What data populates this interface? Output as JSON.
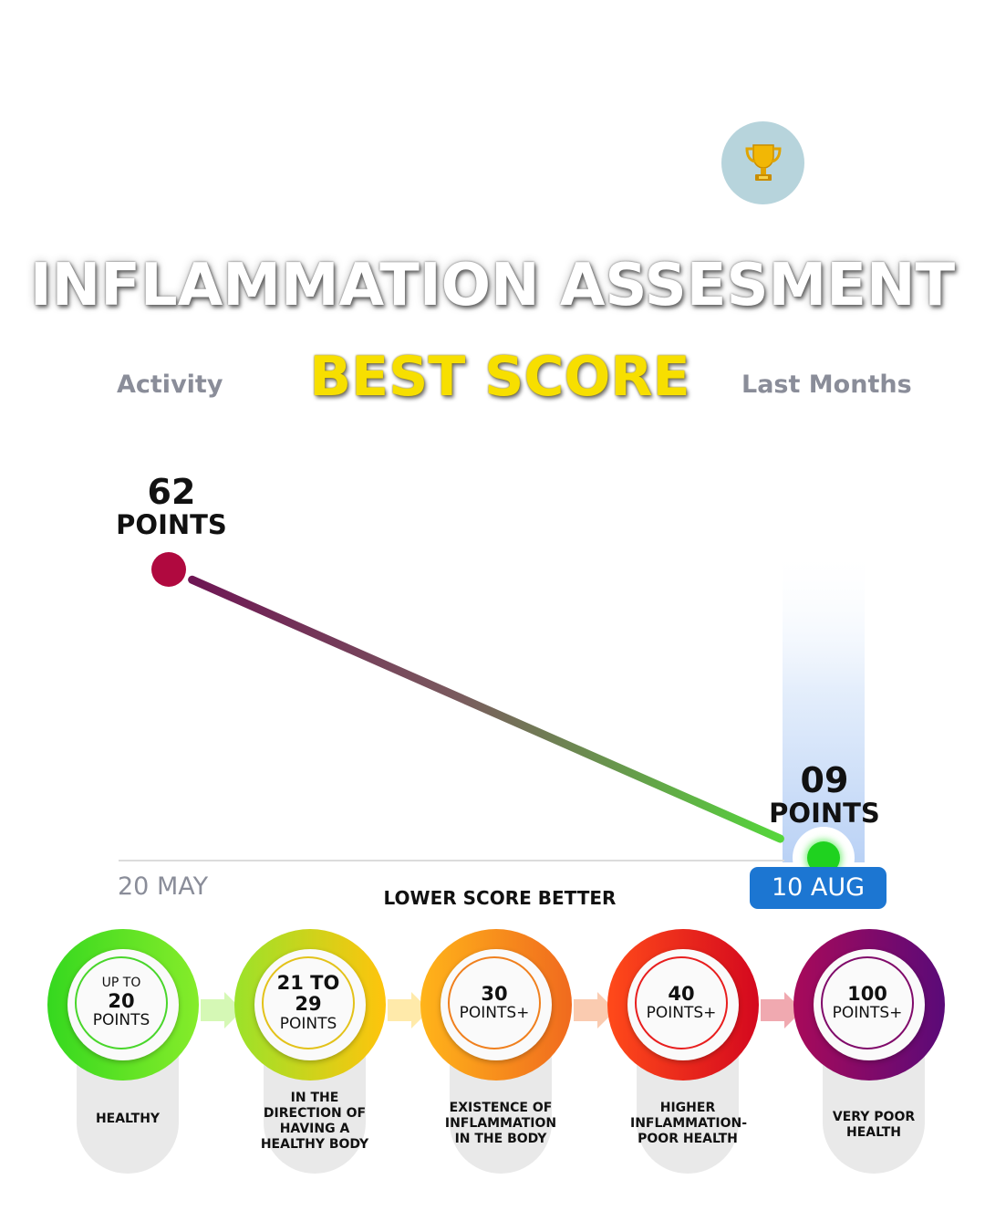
{
  "title": "INFLAMMATION ASSESMENT",
  "subtitle": "BEST SCORE",
  "left_label": "Activity",
  "right_label": "Last Months",
  "note": "LOWER SCORE BETTER",
  "icons": {
    "badge": "trophy-icon"
  },
  "colors": {
    "trophy_badge": "#b7d4dc",
    "title_yellow": "#f7df00",
    "date_highlight": "#1c76d2",
    "start_point": "#b0093f",
    "end_point": "#1fd21f"
  },
  "chart_data": {
    "type": "line",
    "x": [
      "20 MAY",
      "10 AUG"
    ],
    "values": [
      62,
      9
    ],
    "points": [
      {
        "date": "20 MAY",
        "value_label": "62",
        "unit_label": "POINTS"
      },
      {
        "date": "10 AUG",
        "value_label": "09",
        "unit_label": "POINTS",
        "highlighted": true
      }
    ],
    "grid": false,
    "legend": "none"
  },
  "stages": [
    {
      "top": "UP TO",
      "value": "20",
      "unit": "POINTS",
      "desc": "HEALTHY",
      "ring_from": "#35d81f",
      "ring_to": "#86ec2a",
      "inner_border": "#49d62b"
    },
    {
      "top": "",
      "value": "21 TO 29",
      "unit": "POINTS",
      "desc": "IN THE DIRECTION OF HAVING A HEALTHY BODY",
      "ring_from": "#9be22a",
      "ring_to": "#ffc40c",
      "inner_border": "#e3c21a"
    },
    {
      "top": "",
      "value": "30",
      "unit": "POINTS+",
      "desc": "EXISTENCE OF INFLAMMATION IN THE BODY",
      "ring_from": "#ffb41a",
      "ring_to": "#f06a1e",
      "inner_border": "#f0801e"
    },
    {
      "top": "",
      "value": "40",
      "unit": "POINTS+",
      "desc": "HIGHER INFLAMMATION-POOR HEALTH",
      "ring_from": "#ff4a1a",
      "ring_to": "#d4081e",
      "inner_border": "#e81e1e"
    },
    {
      "top": "",
      "value": "100",
      "unit": "POINTS+",
      "desc": "VERY POOR HEALTH",
      "ring_from": "#a80a5a",
      "ring_to": "#5a0a78",
      "inner_border": "#800a6a"
    }
  ]
}
